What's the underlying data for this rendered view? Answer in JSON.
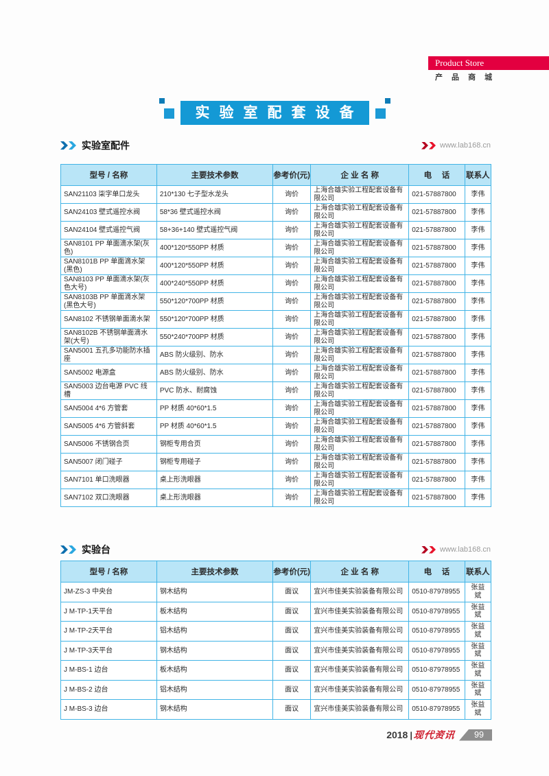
{
  "page": {
    "product_store_label": "Product Store",
    "product_store_cn": "产 品 商 城",
    "banner_title": "实验室配套设备",
    "footer": {
      "year": "2018",
      "separator": "|",
      "brand": "现代资讯",
      "page_number": "99"
    }
  },
  "colors": {
    "banner_blue": "#1499d5",
    "table_border_blue": "#41b4e6",
    "table_header_bg": "#b9e5f7",
    "brand_red": "#e30040",
    "footer_red": "#cf2030",
    "page_tab_gray": "#8e8e8e"
  },
  "sections": [
    {
      "title": "实验室配件",
      "link": "www.lab168.cn",
      "headers": [
        "型号 / 名称",
        "主要技术参数",
        "参考价(元)",
        "企 业 名 称",
        "电　 话",
        "联系人"
      ],
      "rows": [
        {
          "model": "SAN21103  柒字单口龙头",
          "params": "210*130 七子型水龙头",
          "price": "询价",
          "company": "上海合雄实验工程配套设备有限公司",
          "phone": "021-57887800",
          "contact": "李伟"
        },
        {
          "model": "SAN24103  壁式遥控水阀",
          "params": "58*36 壁式遥控水阀",
          "price": "询价",
          "company": "上海合雄实验工程配套设备有限公司",
          "phone": "021-57887800",
          "contact": "李伟"
        },
        {
          "model": "SAN24104  壁式遥控气阀",
          "params": "58+36+140 壁式遥控气阀",
          "price": "询价",
          "company": "上海合雄实验工程配套设备有限公司",
          "phone": "021-57887800",
          "contact": "李伟"
        },
        {
          "model": "SAN8101  PP 单面滴水架(灰色)",
          "params": "400*120*550PP 材质",
          "price": "询价",
          "company": "上海合雄实验工程配套设备有限公司",
          "phone": "021-57887800",
          "contact": "李伟"
        },
        {
          "model": "SAN8101B  PP 单面滴水架(黑色)",
          "params": "400*120*550PP 材质",
          "price": "询价",
          "company": "上海合雄实验工程配套设备有限公司",
          "phone": "021-57887800",
          "contact": "李伟"
        },
        {
          "model": "SAN8103  PP 单面滴水架(灰色大号)",
          "params": "400*240*550PP 材质",
          "price": "询价",
          "company": "上海合雄实验工程配套设备有限公司",
          "phone": "021-57887800",
          "contact": "李伟"
        },
        {
          "model": "SAN8103B  PP 单面滴水架(黑色大号)",
          "params": "550*120*700PP 材质",
          "price": "询价",
          "company": "上海合雄实验工程配套设备有限公司",
          "phone": "021-57887800",
          "contact": "李伟"
        },
        {
          "model": "SAN8102  不锈钢单面滴水架",
          "params": "550*120*700PP 材质",
          "price": "询价",
          "company": "上海合雄实验工程配套设备有限公司",
          "phone": "021-57887800",
          "contact": "李伟"
        },
        {
          "model": "SAN8102B  不锈钢单面滴水架(大号)",
          "params": "550*240*700PP 材质",
          "price": "询价",
          "company": "上海合雄实验工程配套设备有限公司",
          "phone": "021-57887800",
          "contact": "李伟"
        },
        {
          "model": "SAN5001  五孔多功能防水插座",
          "params": "ABS 防火级别、防水",
          "price": "询价",
          "company": "上海合雄实验工程配套设备有限公司",
          "phone": "021-57887800",
          "contact": "李伟"
        },
        {
          "model": "SAN5002  电源盒",
          "params": "ABS 防火级别、防水",
          "price": "询价",
          "company": "上海合雄实验工程配套设备有限公司",
          "phone": "021-57887800",
          "contact": "李伟"
        },
        {
          "model": "SAN5003  边台电源 PVC 线槽",
          "params": "PVC 防水、耐腐蚀",
          "price": "询价",
          "company": "上海合雄实验工程配套设备有限公司",
          "phone": "021-57887800",
          "contact": "李伟"
        },
        {
          "model": "SAN5004  4*6 方管套",
          "params": "PP 材质 40*60*1.5",
          "price": "询价",
          "company": "上海合雄实验工程配套设备有限公司",
          "phone": "021-57887800",
          "contact": "李伟"
        },
        {
          "model": "SAN5005  4*6 方管斜套",
          "params": "PP 材质 40*60*1.5",
          "price": "询价",
          "company": "上海合雄实验工程配套设备有限公司",
          "phone": "021-57887800",
          "contact": "李伟"
        },
        {
          "model": "SAN5006  不锈钢合页",
          "params": "钢柜专用合页",
          "price": "询价",
          "company": "上海合雄实验工程配套设备有限公司",
          "phone": "021-57887800",
          "contact": "李伟"
        },
        {
          "model": "SAN5007  闭门碰子",
          "params": "钢柜专用碰子",
          "price": "询价",
          "company": "上海合雄实验工程配套设备有限公司",
          "phone": "021-57887800",
          "contact": "李伟"
        },
        {
          "model": "SAN7101  单口洗眼器",
          "params": "桌上形洗眼器",
          "price": "询价",
          "company": "上海合雄实验工程配套设备有限公司",
          "phone": "021-57887800",
          "contact": "李伟"
        },
        {
          "model": "SAN7102  双口洗眼器",
          "params": "桌上形洗眼器",
          "price": "询价",
          "company": "上海合雄实验工程配套设备有限公司",
          "phone": "021-57887800",
          "contact": "李伟"
        }
      ]
    },
    {
      "title": "实验台",
      "link": "www.lab168.cn",
      "headers": [
        "型号 / 名称",
        "主要技术参数",
        "参考价(元)",
        "企 业 名 称",
        "电　 话",
        "联系人"
      ],
      "rows": [
        {
          "model": "JM-ZS-3 中央台",
          "params": "钢木结构",
          "price": "面议",
          "company": "宜兴市佳美实验装备有限公司",
          "phone": "0510-87978955",
          "contact": "张益斌"
        },
        {
          "model": "J M-TP-1天平台",
          "params": "板木结构",
          "price": "面议",
          "company": "宜兴市佳美实验装备有限公司",
          "phone": "0510-87978955",
          "contact": "张益斌"
        },
        {
          "model": "J M-TP-2天平台",
          "params": "铝木结构",
          "price": "面议",
          "company": "宜兴市佳美实验装备有限公司",
          "phone": "0510-87978955",
          "contact": "张益斌"
        },
        {
          "model": "J M-TP-3天平台",
          "params": "钢木结构",
          "price": "面议",
          "company": "宜兴市佳美实验装备有限公司",
          "phone": "0510-87978955",
          "contact": "张益斌"
        },
        {
          "model": "J M-BS-1 边台",
          "params": "板木结构",
          "price": "面议",
          "company": "宜兴市佳美实验装备有限公司",
          "phone": "0510-87978955",
          "contact": "张益斌"
        },
        {
          "model": "J M-BS-2 边台",
          "params": "铝木结构",
          "price": "面议",
          "company": "宜兴市佳美实验装备有限公司",
          "phone": "0510-87978955",
          "contact": "张益斌"
        },
        {
          "model": "J M-BS-3 边台",
          "params": "钢木结构",
          "price": "面议",
          "company": "宜兴市佳美实验装备有限公司",
          "phone": "0510-87978955",
          "contact": "张益斌"
        }
      ]
    }
  ]
}
